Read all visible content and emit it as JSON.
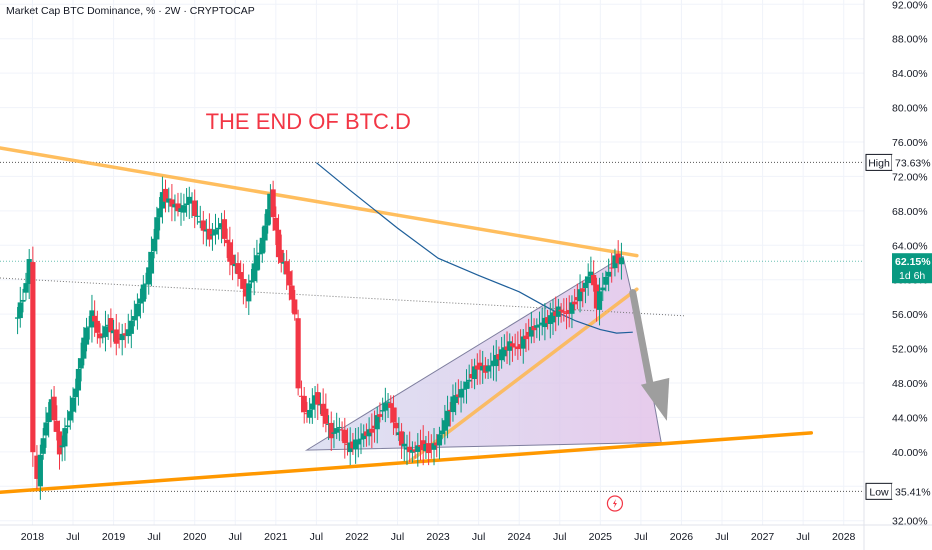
{
  "symbol": {
    "title": "Market Cap BTC Dominance, % · 2W · CRYPTOCAP"
  },
  "annotation": {
    "text": "THE END OF BTC.D",
    "color": "#f23645"
  },
  "colors": {
    "up": "#089981",
    "down": "#f23645",
    "trendline_upper": "#ffb74d",
    "trendline_lower": "#ff9800",
    "channel_line": "#ffb74d",
    "ma_line": "#1e5f9a",
    "triangle_fill": "#d1c4e9",
    "arrow": "#9e9e9e",
    "price_badge": "#089981",
    "high_low_badge": "#ffffff"
  },
  "chart_data": {
    "type": "candlestick",
    "interval": "2W",
    "x_ticks": [
      "2018",
      "Jul",
      "2019",
      "Jul",
      "2020",
      "Jul",
      "2021",
      "Jul",
      "2022",
      "Jul",
      "2023",
      "Jul",
      "2024",
      "Jul",
      "2025",
      "Jul",
      "2026",
      "Jul",
      "2027",
      "Jul",
      "2028"
    ],
    "y_ticks": [
      "92.00%",
      "88.00%",
      "84.00%",
      "80.00%",
      "76.00%",
      "72.00%",
      "68.00%",
      "64.00%",
      "60.00%",
      "56.00%",
      "52.00%",
      "48.00%",
      "44.00%",
      "40.00%",
      "36.00%",
      "32.00%"
    ],
    "ylim": [
      31.5,
      92.5
    ],
    "xlim": [
      2017.6,
      2028.25
    ],
    "current_price": {
      "label": "62.15%",
      "value": 62.15,
      "countdown": "1d 6h"
    },
    "high": {
      "label": "High",
      "value_label": "73.63%",
      "value": 73.63
    },
    "low": {
      "label": "Low",
      "value_label": "35.41%",
      "value": 35.41
    },
    "close_series": [
      {
        "t": 2017.8,
        "v": 55.0
      },
      {
        "t": 2017.9,
        "v": 58.0
      },
      {
        "t": 2017.98,
        "v": 62.0
      },
      {
        "t": 2018.03,
        "v": 40.0
      },
      {
        "t": 2018.08,
        "v": 36.5
      },
      {
        "t": 2018.15,
        "v": 42.0
      },
      {
        "t": 2018.25,
        "v": 46.0
      },
      {
        "t": 2018.35,
        "v": 40.0
      },
      {
        "t": 2018.45,
        "v": 43.5
      },
      {
        "t": 2018.55,
        "v": 47.5
      },
      {
        "t": 2018.65,
        "v": 53.0
      },
      {
        "t": 2018.75,
        "v": 56.0
      },
      {
        "t": 2018.85,
        "v": 53.0
      },
      {
        "t": 2018.95,
        "v": 55.0
      },
      {
        "t": 2019.05,
        "v": 53.0
      },
      {
        "t": 2019.2,
        "v": 54.0
      },
      {
        "t": 2019.35,
        "v": 58.0
      },
      {
        "t": 2019.45,
        "v": 61.0
      },
      {
        "t": 2019.55,
        "v": 67.0
      },
      {
        "t": 2019.62,
        "v": 70.0
      },
      {
        "t": 2019.7,
        "v": 69.0
      },
      {
        "t": 2019.85,
        "v": 68.0
      },
      {
        "t": 2019.95,
        "v": 69.5
      },
      {
        "t": 2020.05,
        "v": 67.0
      },
      {
        "t": 2020.2,
        "v": 65.0
      },
      {
        "t": 2020.35,
        "v": 66.5
      },
      {
        "t": 2020.45,
        "v": 62.5
      },
      {
        "t": 2020.55,
        "v": 61.0
      },
      {
        "t": 2020.65,
        "v": 58.0
      },
      {
        "t": 2020.75,
        "v": 61.5
      },
      {
        "t": 2020.85,
        "v": 64.5
      },
      {
        "t": 2020.95,
        "v": 70.0
      },
      {
        "t": 2021.05,
        "v": 63.0
      },
      {
        "t": 2021.15,
        "v": 61.0
      },
      {
        "t": 2021.25,
        "v": 56.0
      },
      {
        "t": 2021.3,
        "v": 47.0
      },
      {
        "t": 2021.4,
        "v": 44.0
      },
      {
        "t": 2021.5,
        "v": 46.5
      },
      {
        "t": 2021.6,
        "v": 44.5
      },
      {
        "t": 2021.7,
        "v": 42.0
      },
      {
        "t": 2021.8,
        "v": 43.0
      },
      {
        "t": 2021.9,
        "v": 40.5
      },
      {
        "t": 2022.0,
        "v": 41.0
      },
      {
        "t": 2022.1,
        "v": 42.0
      },
      {
        "t": 2022.2,
        "v": 42.5
      },
      {
        "t": 2022.3,
        "v": 44.5
      },
      {
        "t": 2022.4,
        "v": 46.0
      },
      {
        "t": 2022.5,
        "v": 42.5
      },
      {
        "t": 2022.6,
        "v": 40.5
      },
      {
        "t": 2022.7,
        "v": 40.0
      },
      {
        "t": 2022.8,
        "v": 40.8
      },
      {
        "t": 2022.9,
        "v": 40.3
      },
      {
        "t": 2023.0,
        "v": 41.0
      },
      {
        "t": 2023.1,
        "v": 43.5
      },
      {
        "t": 2023.2,
        "v": 46.0
      },
      {
        "t": 2023.3,
        "v": 47.0
      },
      {
        "t": 2023.4,
        "v": 48.5
      },
      {
        "t": 2023.5,
        "v": 50.0
      },
      {
        "t": 2023.6,
        "v": 49.5
      },
      {
        "t": 2023.7,
        "v": 50.5
      },
      {
        "t": 2023.8,
        "v": 51.5
      },
      {
        "t": 2023.9,
        "v": 52.5
      },
      {
        "t": 2024.0,
        "v": 52.0
      },
      {
        "t": 2024.1,
        "v": 53.5
      },
      {
        "t": 2024.2,
        "v": 54.5
      },
      {
        "t": 2024.3,
        "v": 55.0
      },
      {
        "t": 2024.4,
        "v": 55.5
      },
      {
        "t": 2024.5,
        "v": 56.5
      },
      {
        "t": 2024.6,
        "v": 56.0
      },
      {
        "t": 2024.7,
        "v": 57.5
      },
      {
        "t": 2024.8,
        "v": 59.0
      },
      {
        "t": 2024.9,
        "v": 61.0
      },
      {
        "t": 2024.97,
        "v": 57.0
      },
      {
        "t": 2025.05,
        "v": 59.5
      },
      {
        "t": 2025.12,
        "v": 61.0
      },
      {
        "t": 2025.2,
        "v": 62.5
      },
      {
        "t": 2025.28,
        "v": 62.15
      }
    ]
  }
}
